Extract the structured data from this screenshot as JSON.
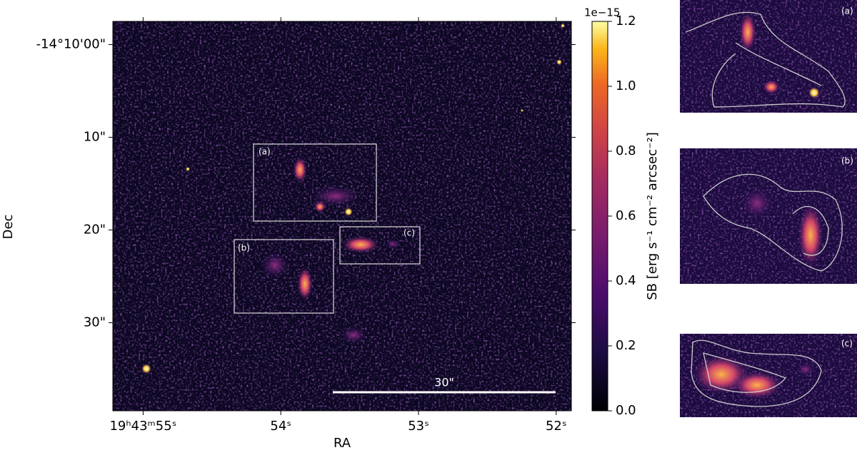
{
  "chart_data": {
    "type": "image",
    "xlabel": "RA",
    "ylabel": "Dec",
    "xlim": [
      55.22,
      51.89
    ],
    "xticks": [
      {
        "value": 55,
        "label": "19ʰ43ᵐ55ˢ"
      },
      {
        "value": 54,
        "label": "54ˢ"
      },
      {
        "value": 53,
        "label": "53ˢ"
      },
      {
        "value": 52,
        "label": "52ˢ"
      }
    ],
    "ylim": [
      2.5,
      -39.5
    ],
    "yticks": [
      {
        "value": 0,
        "label": "-14°10'00\""
      },
      {
        "value": -10,
        "label": "10\""
      },
      {
        "value": -20,
        "label": "20\""
      },
      {
        "value": -30,
        "label": "30\""
      }
    ],
    "colorbar": {
      "label": "SB [erg s⁻¹ cm⁻² arcsec⁻²]",
      "offset": "1e−15",
      "lim": [
        0,
        1.2
      ],
      "ticks": [
        {
          "value": 0,
          "label": "0.0"
        },
        {
          "value": 0.2,
          "label": "0.2"
        },
        {
          "value": 0.4,
          "label": "0.4"
        },
        {
          "value": 0.6,
          "label": "0.6"
        },
        {
          "value": 0.8,
          "label": "0.8"
        },
        {
          "value": 1.0,
          "label": "1.0"
        },
        {
          "value": 1.2,
          "label": "1.2"
        }
      ]
    },
    "scalebar": "30\"",
    "boxes": [
      "(a)",
      "(b)",
      "(c)"
    ],
    "insets": [
      "(a)",
      "(b)",
      "(c)"
    ]
  }
}
